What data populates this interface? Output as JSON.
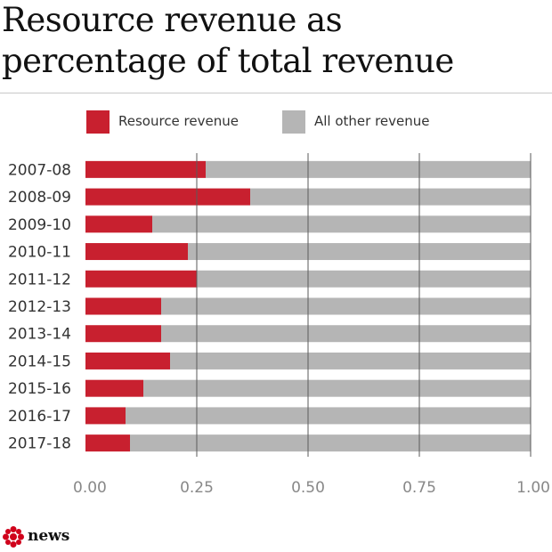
{
  "title_lines": [
    "Resource revenue as",
    "percentage of total revenue"
  ],
  "legend": [
    {
      "label": "Resource revenue",
      "color": "#c8202f"
    },
    {
      "label": "All other revenue",
      "color": "#b5b5b5"
    }
  ],
  "chart_data": {
    "type": "bar",
    "orientation": "horizontal",
    "stacked": true,
    "title": "Resource revenue as percentage of total revenue",
    "xlabel": "",
    "ylabel": "",
    "xlim": [
      0,
      1
    ],
    "xticks": [
      "0.00",
      "0.25",
      "0.50",
      "0.75",
      "1.00"
    ],
    "grid": true,
    "legend_position": "top",
    "categories": [
      "2007-08",
      "2008-09",
      "2009-10",
      "2010-11",
      "2011-12",
      "2012-13",
      "2013-14",
      "2014-15",
      "2015-16",
      "2016-17",
      "2017-18"
    ],
    "series": [
      {
        "name": "Resource revenue",
        "color": "#c8202f",
        "values": [
          0.27,
          0.37,
          0.15,
          0.23,
          0.25,
          0.17,
          0.17,
          0.19,
          0.13,
          0.09,
          0.1
        ]
      },
      {
        "name": "All other revenue",
        "color": "#b5b5b5",
        "values": [
          0.73,
          0.63,
          0.85,
          0.77,
          0.75,
          0.83,
          0.83,
          0.81,
          0.87,
          0.91,
          0.9
        ]
      }
    ]
  },
  "footer": {
    "logo_text": "news"
  }
}
